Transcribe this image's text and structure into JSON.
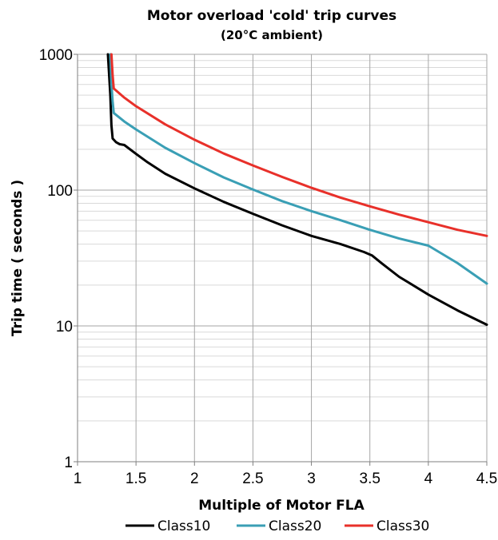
{
  "chart_data": {
    "type": "line",
    "title": "Motor overload 'cold' trip curves",
    "subtitle": "(20°C ambient)",
    "xlabel": "Multiple of Motor FLA",
    "ylabel": "Trip time ( seconds )",
    "xlim": [
      1,
      4.5
    ],
    "ylim": [
      1,
      1000
    ],
    "yscale": "log",
    "x_ticks": [
      "1",
      "1.5",
      "2",
      "2.5",
      "3",
      "3.5",
      "4",
      "4.5"
    ],
    "y_ticks": [
      "1",
      "10",
      "100",
      "1000"
    ],
    "grid": true,
    "legend_position": "bottom",
    "series": [
      {
        "name": "Class10",
        "color": "#000000",
        "points": [
          [
            1.26,
            1000
          ],
          [
            1.28,
            500
          ],
          [
            1.29,
            300
          ],
          [
            1.3,
            240
          ],
          [
            1.33,
            225
          ],
          [
            1.36,
            218
          ],
          [
            1.4,
            215
          ],
          [
            1.5,
            185
          ],
          [
            1.6,
            160
          ],
          [
            1.75,
            132
          ],
          [
            2.0,
            103
          ],
          [
            2.25,
            82
          ],
          [
            2.5,
            67
          ],
          [
            2.75,
            55
          ],
          [
            3.0,
            46
          ],
          [
            3.25,
            40
          ],
          [
            3.45,
            35
          ],
          [
            3.52,
            33
          ],
          [
            3.6,
            29
          ],
          [
            3.75,
            23
          ],
          [
            4.0,
            17
          ],
          [
            4.25,
            13
          ],
          [
            4.5,
            10.2
          ]
        ]
      },
      {
        "name": "Class20",
        "color": "#3A9FB5",
        "points": [
          [
            1.28,
            1000
          ],
          [
            1.29,
            600
          ],
          [
            1.3,
            450
          ],
          [
            1.31,
            370
          ],
          [
            1.4,
            320
          ],
          [
            1.5,
            280
          ],
          [
            1.75,
            205
          ],
          [
            2.0,
            158
          ],
          [
            2.25,
            124
          ],
          [
            2.5,
            101
          ],
          [
            2.75,
            83
          ],
          [
            3.0,
            70
          ],
          [
            3.25,
            60
          ],
          [
            3.5,
            51
          ],
          [
            3.75,
            44
          ],
          [
            4.0,
            39
          ],
          [
            4.25,
            29
          ],
          [
            4.5,
            20.5
          ]
        ]
      },
      {
        "name": "Class30",
        "color": "#E8302A",
        "points": [
          [
            1.29,
            1000
          ],
          [
            1.3,
            700
          ],
          [
            1.31,
            560
          ],
          [
            1.4,
            480
          ],
          [
            1.5,
            415
          ],
          [
            1.75,
            305
          ],
          [
            2.0,
            235
          ],
          [
            2.25,
            186
          ],
          [
            2.5,
            152
          ],
          [
            2.75,
            125
          ],
          [
            3.0,
            104
          ],
          [
            3.25,
            88
          ],
          [
            3.5,
            76
          ],
          [
            3.75,
            66
          ],
          [
            4.0,
            58
          ],
          [
            4.25,
            51
          ],
          [
            4.5,
            46
          ]
        ]
      }
    ]
  }
}
